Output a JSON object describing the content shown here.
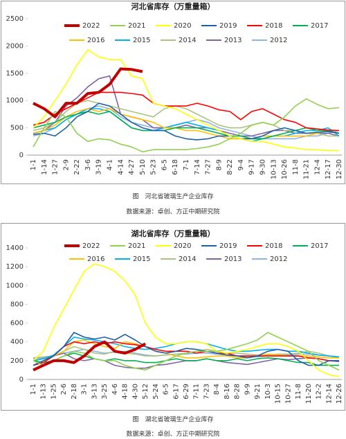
{
  "chart_data": [
    {
      "type": "line",
      "title": "河北省库存（万重量箱）",
      "caption": "图　河北省玻璃生产企业库存",
      "source": "数据来源：卓创、方正中期研究院",
      "categories": [
        "1-1",
        "1-14",
        "1-27",
        "2-9",
        "2-22",
        "3-6",
        "3-19",
        "4-1",
        "4-14",
        "4-27",
        "5-10",
        "5-23",
        "6-5",
        "6-18",
        "7-1",
        "7-14",
        "7-27",
        "8-9",
        "8-22",
        "9-4",
        "9-17",
        "9-30",
        "10-13",
        "10-26",
        "11-8",
        "11-21",
        "12-4",
        "12-17",
        "12-30"
      ],
      "ylim": [
        0,
        2500
      ],
      "yticks": [
        0,
        500,
        1000,
        1500,
        2000,
        2500
      ],
      "grid": false,
      "series": [
        {
          "name": "2022",
          "color": "#c00000",
          "values": [
            950,
            850,
            700,
            950,
            950,
            1130,
            1150,
            1300,
            1580,
            1570,
            1530,
            null,
            null,
            null,
            null,
            null,
            null,
            null,
            null,
            null,
            null,
            null,
            null,
            null,
            null,
            null,
            null,
            null,
            null
          ]
        },
        {
          "name": "2021",
          "color": "#92d050",
          "values": [
            150,
            500,
            800,
            700,
            400,
            250,
            300,
            280,
            200,
            150,
            60,
            100,
            100,
            100,
            100,
            120,
            150,
            200,
            300,
            400,
            550,
            600,
            550,
            700,
            900,
            1030,
            930,
            850,
            870
          ]
        },
        {
          "name": "2020",
          "color": "#ffff00",
          "values": [
            500,
            700,
            1000,
            1300,
            1650,
            1930,
            1800,
            1750,
            1750,
            1450,
            1400,
            950,
            900,
            850,
            750,
            650,
            550,
            450,
            350,
            300,
            250,
            250,
            200,
            150,
            130,
            100,
            100,
            80,
            80
          ]
        },
        {
          "name": "2019",
          "color": "#1f5fa8",
          "values": [
            380,
            400,
            350,
            500,
            700,
            800,
            950,
            900,
            750,
            600,
            500,
            450,
            450,
            350,
            300,
            280,
            300,
            350,
            350,
            300,
            300,
            350,
            450,
            500,
            450,
            400,
            420,
            430,
            400
          ]
        },
        {
          "name": "2018",
          "color": "#ff0000",
          "values": [
            550,
            600,
            750,
            850,
            950,
            1050,
            1150,
            1150,
            1150,
            1130,
            1100,
            950,
            900,
            900,
            900,
            950,
            900,
            830,
            800,
            650,
            800,
            850,
            750,
            650,
            600,
            500,
            480,
            460,
            450
          ]
        },
        {
          "name": "2017",
          "color": "#00b050",
          "values": [
            500,
            550,
            600,
            700,
            750,
            800,
            750,
            800,
            650,
            500,
            450,
            450,
            450,
            500,
            500,
            500,
            450,
            400,
            350,
            350,
            300,
            300,
            350,
            400,
            450,
            500,
            450,
            450,
            400
          ]
        },
        {
          "name": "2016",
          "color": "#ffc000",
          "values": [
            400,
            450,
            550,
            700,
            800,
            850,
            800,
            850,
            750,
            700,
            650,
            600,
            500,
            500,
            450,
            450,
            400,
            350,
            300,
            300,
            300,
            350,
            350,
            350,
            350,
            350,
            400,
            450,
            400
          ]
        },
        {
          "name": "2015",
          "color": "#00b0f0",
          "values": [
            400,
            450,
            500,
            650,
            750,
            850,
            850,
            800,
            650,
            500,
            450,
            450,
            500,
            550,
            600,
            550,
            500,
            450,
            350,
            300,
            250,
            300,
            350,
            350,
            400,
            450,
            450,
            500,
            350
          ]
        },
        {
          "name": "2014",
          "color": "#a9c47f",
          "values": [
            450,
            500,
            600,
            800,
            950,
            1000,
            950,
            900,
            850,
            800,
            750,
            700,
            850,
            900,
            850,
            750,
            650,
            550,
            500,
            500,
            550,
            600,
            550,
            450,
            450,
            400,
            400,
            350,
            350
          ]
        },
        {
          "name": "2013",
          "color": "#8064a2",
          "values": [
            400,
            450,
            600,
            900,
            1050,
            1250,
            1400,
            1450,
            750,
            700,
            650,
            500,
            500,
            500,
            550,
            500,
            500,
            450,
            400,
            350,
            350,
            400,
            450,
            450,
            400,
            400,
            400,
            400,
            350
          ]
        },
        {
          "name": "2012",
          "color": "#8db4e2",
          "values": [
            350,
            400,
            500,
            650,
            750,
            850,
            900,
            850,
            700,
            600,
            550,
            500,
            500,
            550,
            600,
            650,
            600,
            500,
            450,
            400,
            350,
            300,
            300,
            300,
            300,
            350,
            350,
            400,
            450
          ]
        }
      ]
    },
    {
      "type": "line",
      "title": "湖北省库存（万重量箱）",
      "caption": "图　湖北省玻璃生产企业库存",
      "source": "数据来源：卓创、方正中期研究院",
      "categories": [
        "1-1",
        "1-13",
        "1-25",
        "2-6",
        "2-18",
        "3-1",
        "3-13",
        "3-25",
        "4-6",
        "4-18",
        "4-30",
        "5-12",
        "5-24",
        "6-5",
        "6-17",
        "6-29",
        "7-11",
        "7-23",
        "8-4",
        "8-16",
        "8-28",
        "9-9",
        "9-21",
        "10-3",
        "10-15",
        "10-27",
        "11-8",
        "11-20",
        "12-2",
        "12-14",
        "12-26"
      ],
      "ylim": [
        0,
        1400
      ],
      "yticks": [
        0,
        200,
        400,
        600,
        800,
        1000,
        1200,
        1400
      ],
      "grid": false,
      "series": [
        {
          "name": "2022",
          "color": "#c00000",
          "values": [
            100,
            150,
            200,
            200,
            180,
            250,
            350,
            400,
            300,
            280,
            320,
            380,
            null,
            null,
            null,
            null,
            null,
            null,
            null,
            null,
            null,
            null,
            null,
            null,
            null,
            null,
            null,
            null,
            null,
            null,
            null
          ]
        },
        {
          "name": "2021",
          "color": "#92d050",
          "values": [
            200,
            150,
            200,
            250,
            300,
            280,
            220,
            200,
            200,
            150,
            120,
            100,
            150,
            200,
            250,
            280,
            300,
            300,
            300,
            320,
            350,
            380,
            420,
            500,
            450,
            400,
            350,
            300,
            200,
            150,
            100
          ]
        },
        {
          "name": "2020",
          "color": "#ffff00",
          "values": [
            200,
            300,
            550,
            750,
            950,
            1150,
            1230,
            1200,
            1150,
            1050,
            900,
            600,
            450,
            380,
            380,
            400,
            400,
            380,
            300,
            280,
            300,
            320,
            350,
            380,
            380,
            350,
            300,
            200,
            100,
            50,
            30
          ]
        },
        {
          "name": "2019",
          "color": "#1f5fa8",
          "values": [
            150,
            200,
            250,
            350,
            500,
            450,
            430,
            450,
            420,
            480,
            420,
            350,
            300,
            280,
            300,
            330,
            320,
            300,
            280,
            260,
            250,
            230,
            250,
            300,
            320,
            300,
            200,
            150,
            150,
            200,
            200
          ]
        },
        {
          "name": "2018",
          "color": "#ff0000",
          "values": [
            150,
            180,
            250,
            350,
            400,
            380,
            400,
            380,
            400,
            380,
            370,
            350,
            320,
            300,
            300,
            300,
            280,
            300,
            280,
            280,
            250,
            250,
            250,
            250,
            250,
            250,
            250,
            230,
            220,
            200,
            200
          ]
        },
        {
          "name": "2017",
          "color": "#00b050",
          "values": [
            200,
            180,
            200,
            250,
            280,
            250,
            220,
            200,
            220,
            200,
            200,
            180,
            180,
            200,
            220,
            200,
            200,
            220,
            200,
            200,
            220,
            200,
            220,
            230,
            220,
            200,
            180,
            180,
            150,
            150,
            150
          ]
        },
        {
          "name": "2016",
          "color": "#ffc000",
          "values": [
            150,
            200,
            250,
            300,
            400,
            420,
            380,
            350,
            330,
            400,
            380,
            350,
            300,
            280,
            250,
            230,
            230,
            240,
            250,
            250,
            230,
            230,
            250,
            270,
            260,
            250,
            250,
            250,
            240,
            230,
            230
          ]
        },
        {
          "name": "2015",
          "color": "#00b0f0",
          "values": [
            200,
            220,
            260,
            350,
            450,
            430,
            420,
            400,
            380,
            350,
            330,
            320,
            330,
            350,
            380,
            400,
            400,
            380,
            350,
            320,
            300,
            300,
            310,
            320,
            320,
            300,
            300,
            280,
            260,
            250,
            240
          ]
        },
        {
          "name": "2014",
          "color": "#a9c47f",
          "values": [
            230,
            240,
            250,
            300,
            350,
            320,
            280,
            270,
            300,
            280,
            270,
            250,
            250,
            260,
            270,
            280,
            300,
            320,
            300,
            280,
            280,
            270,
            260,
            260,
            270,
            270,
            280,
            300,
            280,
            250,
            230
          ]
        },
        {
          "name": "2013",
          "color": "#8064a2",
          "values": [
            200,
            220,
            250,
            280,
            220,
            200,
            220,
            200,
            150,
            130,
            120,
            120,
            150,
            160,
            180,
            200,
            200,
            220,
            200,
            180,
            170,
            160,
            180,
            200,
            220,
            210,
            220,
            230,
            220,
            200,
            190
          ]
        },
        {
          "name": "2012",
          "color": "#8db4e2",
          "values": [
            220,
            230,
            250,
            280,
            300,
            320,
            300,
            280,
            290,
            300,
            280,
            260,
            250,
            260,
            270,
            270,
            280,
            280,
            270,
            260,
            250,
            240,
            240,
            250,
            260,
            260,
            270,
            270,
            260,
            250,
            240
          ]
        }
      ]
    }
  ]
}
